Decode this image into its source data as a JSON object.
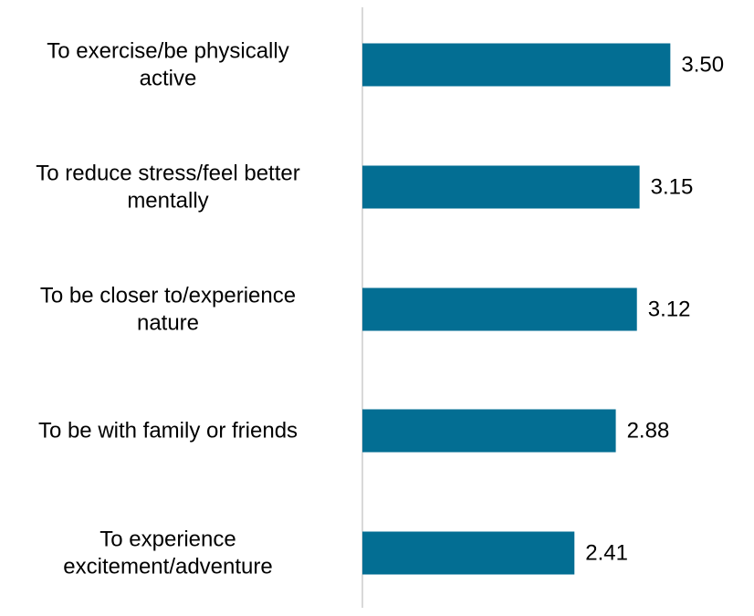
{
  "chart_data": {
    "type": "bar",
    "orientation": "horizontal",
    "categories": [
      "To exercise/be physically active",
      "To reduce stress/feel better mentally",
      "To be closer to/experience nature",
      "To be with family or friends",
      "To experience excitement/adventure"
    ],
    "category_label_lines": [
      [
        "To exercise/be physically",
        "active"
      ],
      [
        "To reduce stress/feel better",
        "mentally"
      ],
      [
        "To be closer to/experience",
        "nature"
      ],
      [
        "To be with family or friends"
      ],
      [
        "To experience",
        "excitement/adventure"
      ]
    ],
    "values": [
      3.5,
      3.15,
      3.12,
      2.88,
      2.41
    ],
    "value_labels": [
      "3.50",
      "3.15",
      "3.12",
      "2.88",
      "2.41"
    ],
    "xlim": [
      0,
      4.15
    ],
    "grid": false,
    "colors": {
      "bar": "#036E93",
      "axis": "#D9D9D9",
      "text": "#000000"
    }
  }
}
